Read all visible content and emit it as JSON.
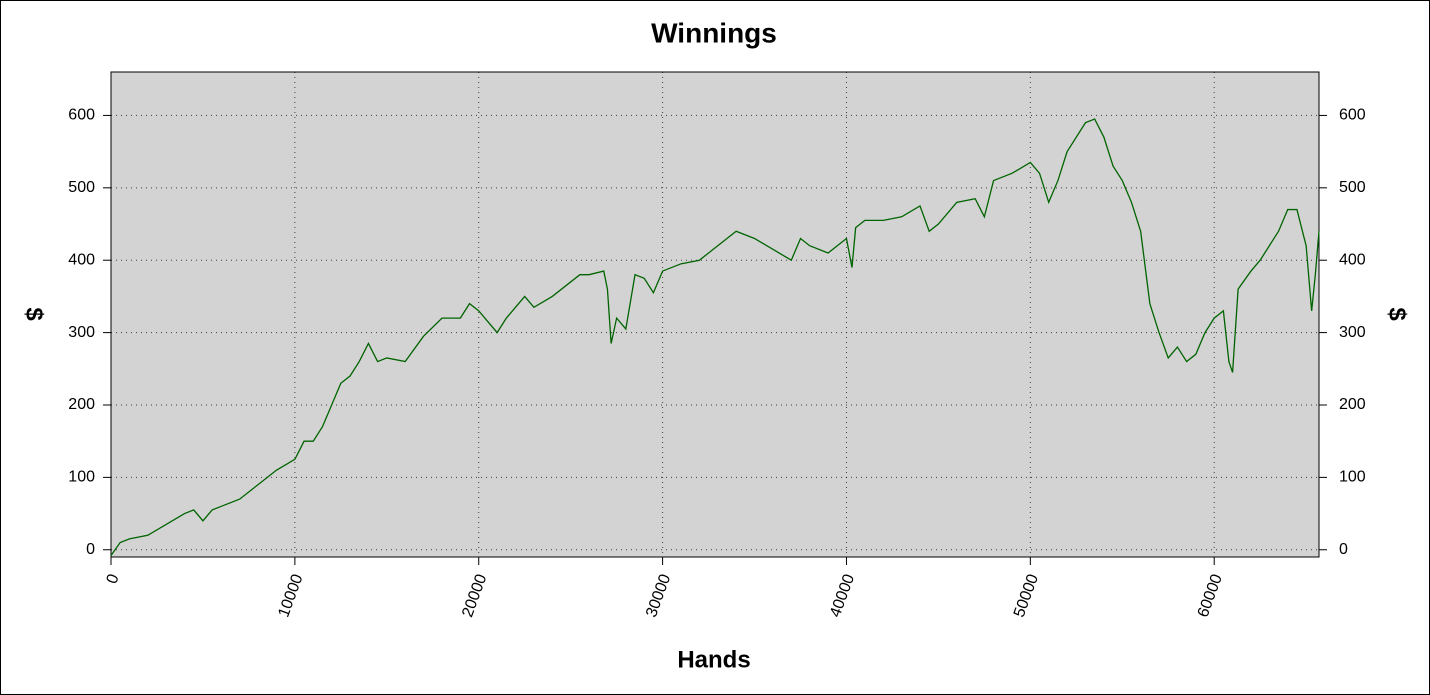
{
  "chart_data": {
    "type": "line",
    "title": "Winnings",
    "xlabel": "Hands",
    "ylabel": "$",
    "y2label": "$",
    "x": [
      0,
      500,
      1000,
      2000,
      3000,
      4000,
      4500,
      5000,
      5500,
      6000,
      7000,
      8000,
      9000,
      10000,
      10500,
      11000,
      11500,
      12000,
      12500,
      13000,
      13500,
      14000,
      14500,
      15000,
      16000,
      17000,
      18000,
      19000,
      19500,
      20000,
      21000,
      21500,
      22500,
      23000,
      24000,
      25000,
      25500,
      26000,
      26800,
      27000,
      27200,
      27500,
      28000,
      28500,
      29000,
      29500,
      30000,
      31000,
      32000,
      32500,
      33000,
      34000,
      35000,
      36000,
      37000,
      37500,
      38000,
      39000,
      40000,
      40300,
      40500,
      41000,
      42000,
      43000,
      44000,
      44500,
      45000,
      46000,
      47000,
      47500,
      48000,
      49000,
      50000,
      50500,
      51000,
      51500,
      52000,
      53000,
      53500,
      54000,
      54500,
      55000,
      55500,
      56000,
      56500,
      57000,
      57500,
      58000,
      58500,
      59000,
      59500,
      60000,
      60500,
      60800,
      61000,
      61300,
      62000,
      62500,
      63000,
      63500,
      64000,
      64500,
      65000,
      65300,
      65500,
      65700
    ],
    "series": [
      {
        "name": "Winnings",
        "color": "#006400",
        "values": [
          -8,
          10,
          15,
          20,
          35,
          50,
          55,
          40,
          55,
          60,
          70,
          90,
          110,
          125,
          150,
          150,
          170,
          200,
          230,
          240,
          260,
          285,
          260,
          265,
          260,
          295,
          320,
          320,
          340,
          330,
          300,
          320,
          350,
          335,
          350,
          370,
          380,
          380,
          385,
          360,
          285,
          320,
          305,
          380,
          375,
          355,
          385,
          395,
          400,
          410,
          420,
          440,
          430,
          415,
          400,
          430,
          420,
          410,
          430,
          390,
          445,
          455,
          455,
          460,
          475,
          440,
          450,
          480,
          485,
          460,
          510,
          520,
          535,
          520,
          480,
          510,
          550,
          590,
          595,
          570,
          530,
          510,
          480,
          440,
          340,
          300,
          265,
          280,
          260,
          270,
          300,
          320,
          330,
          260,
          245,
          360,
          385,
          400,
          420,
          440,
          470,
          470,
          420,
          330,
          380,
          440
        ]
      }
    ],
    "xlim": [
      0,
      65700
    ],
    "xticks": [
      0,
      10000,
      20000,
      30000,
      40000,
      50000,
      60000
    ],
    "ylim": [
      -10,
      660
    ],
    "yticks": [
      0,
      100,
      200,
      300,
      400,
      500,
      600
    ],
    "y2lim": [
      -10,
      660
    ],
    "y2ticks": [
      0,
      100,
      200,
      300,
      400,
      500,
      600
    ],
    "grid": true
  }
}
